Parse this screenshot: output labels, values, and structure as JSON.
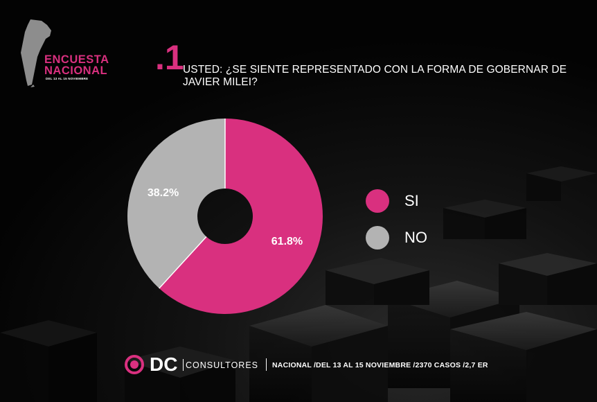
{
  "brand": {
    "title_line1": "ENCUESTA",
    "title_line2": "NACIONAL",
    "subtitle": "DEL 13 AL 15 NOVIEMBRE"
  },
  "question": {
    "number": ".1",
    "text": "USTED: ¿SE SIENTE REPRESENTADO CON LA FORMA DE GOBERNAR DE JAVIER MILEI?"
  },
  "chart_data": {
    "type": "pie",
    "variant": "donut",
    "title": "USTED: ¿SE SIENTE REPRESENTADO CON LA FORMA DE GOBERNAR DE JAVIER MILEI?",
    "categories": [
      "SI",
      "NO"
    ],
    "values": [
      61.8,
      38.2
    ],
    "labels": [
      "61.8%",
      "38.2%"
    ],
    "colors": [
      "#d9307f",
      "#b3b3b3"
    ],
    "legend_position": "right",
    "start": "top",
    "direction": "clockwise"
  },
  "legend": [
    {
      "label": "SI",
      "color": "#d9307f"
    },
    {
      "label": "NO",
      "color": "#b3b3b3"
    }
  ],
  "footer": {
    "logo_text": "DC",
    "company": "CONSULTORES",
    "info": "NACIONAL /DEL 13 AL 15 NOVIEMBRE /2370 CASOS /2,7 ER"
  },
  "colors": {
    "accent": "#d9307f",
    "secondary": "#b3b3b3",
    "background": "#050505"
  }
}
